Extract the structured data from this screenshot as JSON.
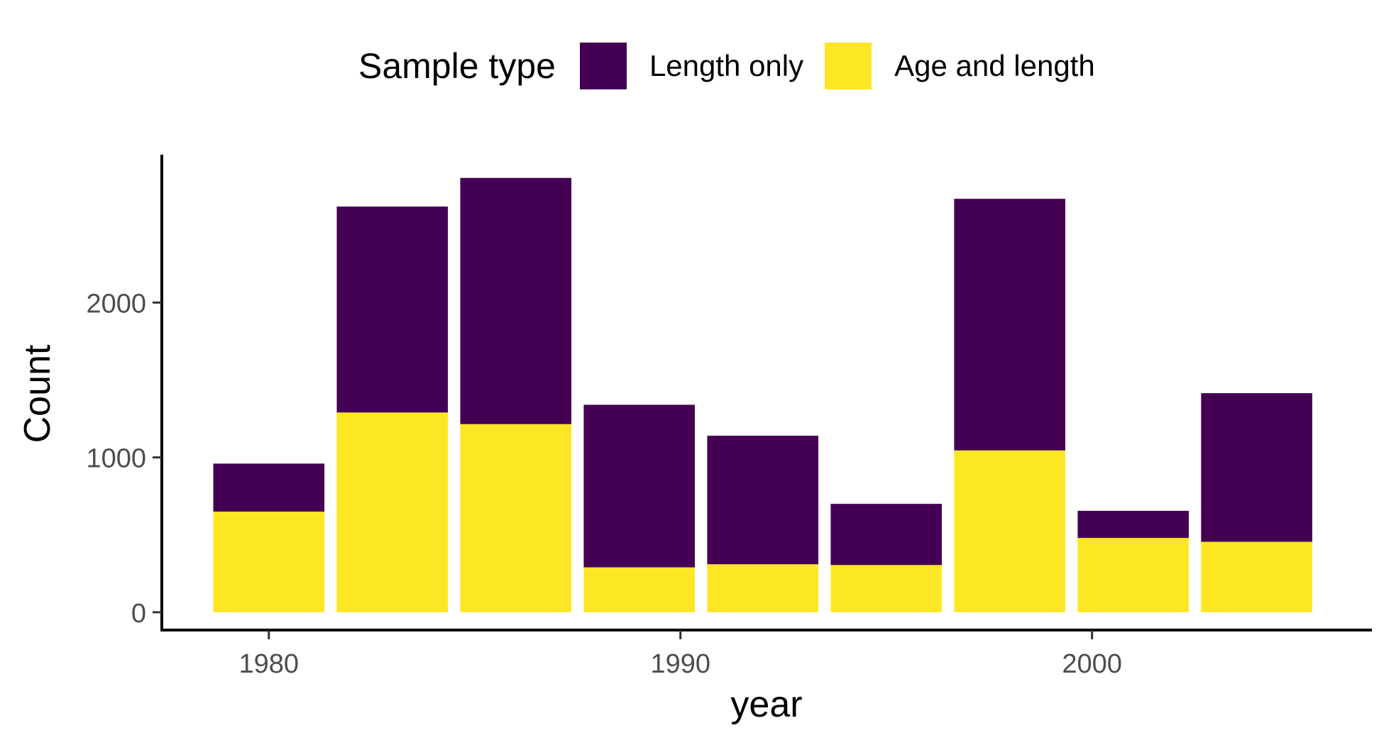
{
  "chart_data": {
    "type": "bar",
    "stacked": true,
    "x": [
      1980,
      1983,
      1986,
      1989,
      1992,
      1995,
      1998,
      2001,
      2004
    ],
    "series": [
      {
        "name": "Age and length",
        "color": "#FDE725",
        "values": [
          650,
          1290,
          1215,
          290,
          310,
          305,
          1045,
          480,
          455
        ]
      },
      {
        "name": "Length only",
        "color": "#440154",
        "values": [
          310,
          1330,
          1590,
          1050,
          830,
          395,
          1625,
          175,
          960
        ]
      }
    ],
    "legend": {
      "title": "Sample type",
      "position": "top",
      "order": [
        "Length only",
        "Age and length"
      ]
    },
    "xlabel": "year",
    "ylabel": "Count",
    "xticks": [
      "1980",
      "1990",
      "2000"
    ],
    "yticks": [
      "0",
      "1000",
      "2000"
    ],
    "xlim": [
      1977.4,
      2006.8
    ],
    "ylim": [
      -115,
      2955
    ],
    "grid": false
  }
}
